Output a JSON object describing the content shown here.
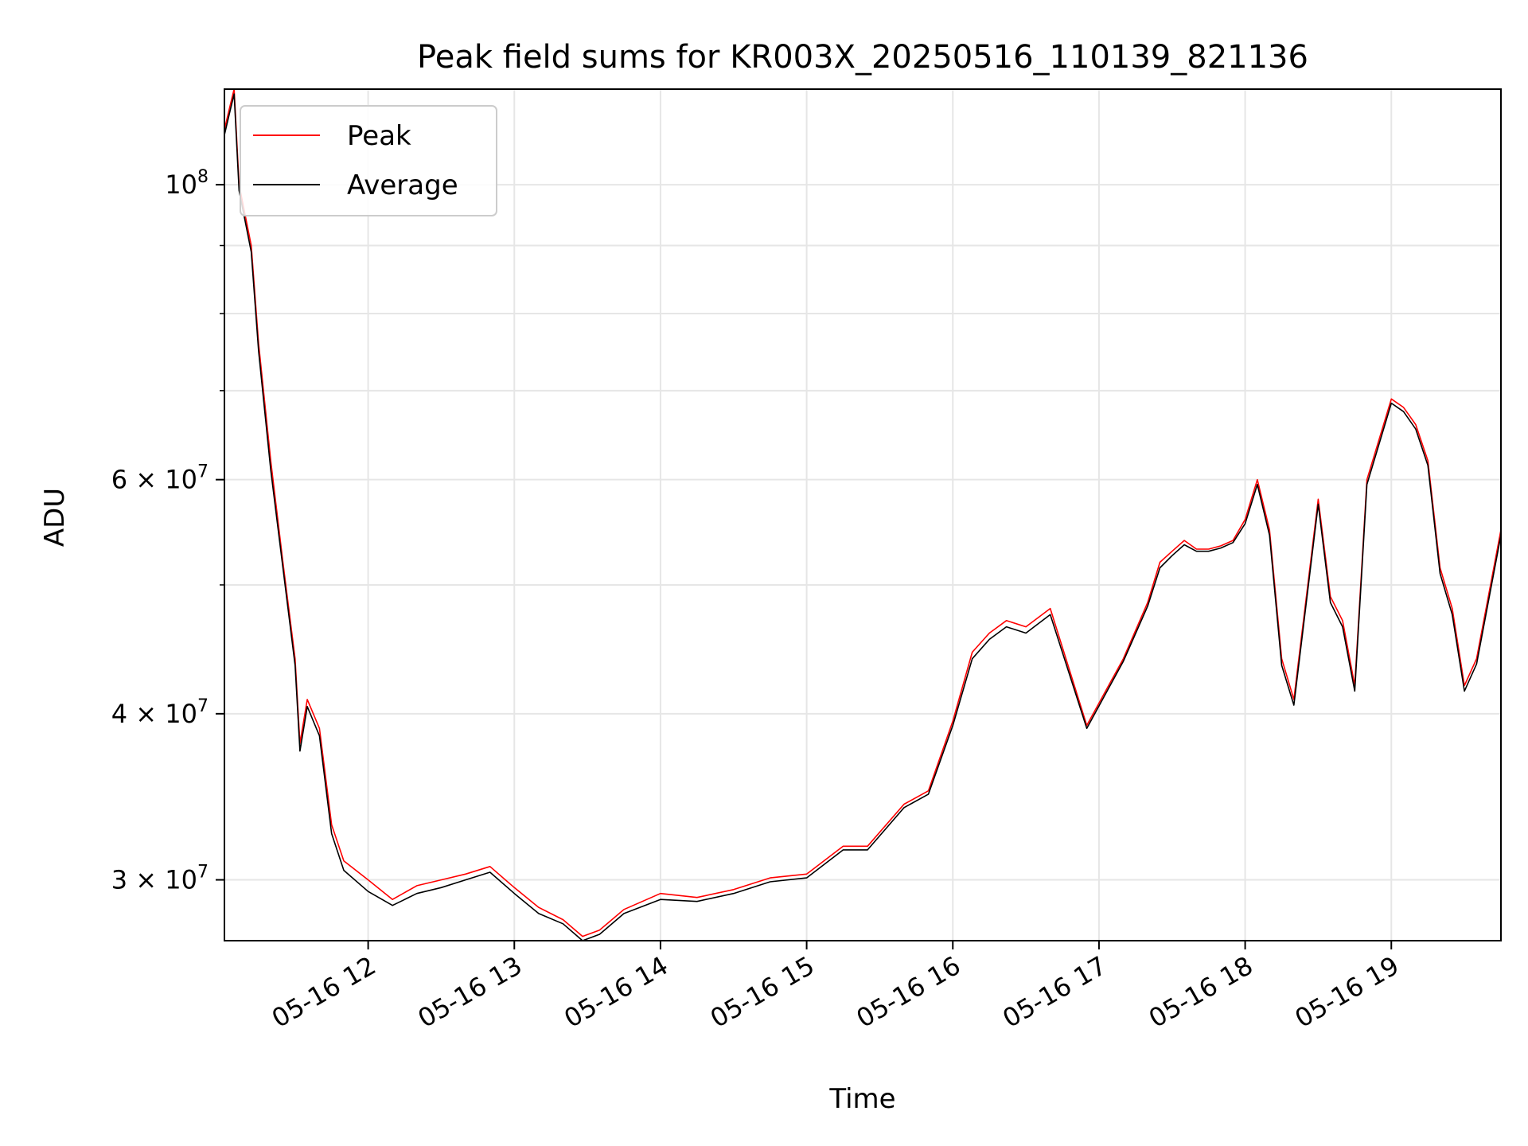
{
  "chart_data": {
    "type": "line",
    "title": "Peak field sums for KR003X_20250516_110139_821136",
    "xlabel": "Time",
    "ylabel": "ADU",
    "y_scale": "log",
    "ylim": [
      27000000,
      118000000
    ],
    "xlim": [
      "05-16 11:01",
      "05-16 19:45"
    ],
    "grid": true,
    "legend_placement": "upper-left",
    "x_ticks": [
      "05-16 12",
      "05-16 13",
      "05-16 14",
      "05-16 15",
      "05-16 16",
      "05-16 17",
      "05-16 18",
      "05-16 19"
    ],
    "y_ticks": [
      {
        "value": 30000000,
        "label": "3 × 10^7",
        "mant": "3",
        "exp": "7"
      },
      {
        "value": 40000000,
        "label": "4 × 10^7",
        "mant": "4",
        "exp": "7"
      },
      {
        "value": 60000000,
        "label": "6 × 10^7",
        "mant": "6",
        "exp": "7"
      },
      {
        "value": 100000000,
        "label": "10^8",
        "mant": "",
        "exp": "8"
      }
    ],
    "series": [
      {
        "name": "Peak",
        "color": "#ff0000",
        "x": [
          "05-16 11:01",
          "05-16 11:03",
          "05-16 11:05",
          "05-16 11:07",
          "05-16 11:12",
          "05-16 11:15",
          "05-16 11:20",
          "05-16 11:25",
          "05-16 11:30",
          "05-16 11:32",
          "05-16 11:35",
          "05-16 11:40",
          "05-16 11:45",
          "05-16 11:50",
          "05-16 12:00",
          "05-16 12:10",
          "05-16 12:20",
          "05-16 12:30",
          "05-16 12:40",
          "05-16 12:50",
          "05-16 13:00",
          "05-16 13:10",
          "05-16 13:20",
          "05-16 13:28",
          "05-16 13:35",
          "05-16 13:45",
          "05-16 14:00",
          "05-16 14:15",
          "05-16 14:30",
          "05-16 14:45",
          "05-16 15:00",
          "05-16 15:15",
          "05-16 15:25",
          "05-16 15:40",
          "05-16 15:50",
          "05-16 16:00",
          "05-16 16:08",
          "05-16 16:15",
          "05-16 16:22",
          "05-16 16:30",
          "05-16 16:40",
          "05-16 16:55",
          "05-16 17:10",
          "05-16 17:20",
          "05-16 17:25",
          "05-16 17:30",
          "05-16 17:35",
          "05-16 17:40",
          "05-16 17:45",
          "05-16 17:50",
          "05-16 17:55",
          "05-16 18:00",
          "05-16 18:05",
          "05-16 18:10",
          "05-16 18:15",
          "05-16 18:20",
          "05-16 18:30",
          "05-16 18:35",
          "05-16 18:40",
          "05-16 18:45",
          "05-16 18:50",
          "05-16 19:00",
          "05-16 19:05",
          "05-16 19:10",
          "05-16 19:15",
          "05-16 19:20",
          "05-16 19:25",
          "05-16 19:30",
          "05-16 19:35",
          "05-16 19:45"
        ],
        "y": [
          110000000,
          114000000,
          118000000,
          100000000,
          90000000,
          76000000,
          62000000,
          52000000,
          44000000,
          38000000,
          41000000,
          39000000,
          33000000,
          31000000,
          30000000,
          29000000,
          29700000,
          30000000,
          30300000,
          30700000,
          29600000,
          28600000,
          28000000,
          27200000,
          27500000,
          28500000,
          29300000,
          29100000,
          29500000,
          30100000,
          30300000,
          31800000,
          31800000,
          34200000,
          35000000,
          39500000,
          44500000,
          46000000,
          47000000,
          46500000,
          48000000,
          39200000,
          44000000,
          48500000,
          52000000,
          53000000,
          54000000,
          53200000,
          53200000,
          53500000,
          54000000,
          56000000,
          60000000,
          55000000,
          44000000,
          41000000,
          58000000,
          49000000,
          47000000,
          42000000,
          60000000,
          69000000,
          68000000,
          66000000,
          62000000,
          51500000,
          48000000,
          42000000,
          44000000,
          55000000
        ]
      },
      {
        "name": "Average",
        "color": "#000000",
        "x": [
          "05-16 11:01",
          "05-16 11:03",
          "05-16 11:05",
          "05-16 11:07",
          "05-16 11:12",
          "05-16 11:15",
          "05-16 11:20",
          "05-16 11:25",
          "05-16 11:30",
          "05-16 11:32",
          "05-16 11:35",
          "05-16 11:40",
          "05-16 11:45",
          "05-16 11:50",
          "05-16 12:00",
          "05-16 12:10",
          "05-16 12:20",
          "05-16 12:30",
          "05-16 12:40",
          "05-16 12:50",
          "05-16 13:00",
          "05-16 13:10",
          "05-16 13:20",
          "05-16 13:28",
          "05-16 13:35",
          "05-16 13:45",
          "05-16 14:00",
          "05-16 14:15",
          "05-16 14:30",
          "05-16 14:45",
          "05-16 15:00",
          "05-16 15:15",
          "05-16 15:25",
          "05-16 15:40",
          "05-16 15:50",
          "05-16 16:00",
          "05-16 16:08",
          "05-16 16:15",
          "05-16 16:22",
          "05-16 16:30",
          "05-16 16:40",
          "05-16 16:55",
          "05-16 17:10",
          "05-16 17:20",
          "05-16 17:25",
          "05-16 17:30",
          "05-16 17:35",
          "05-16 17:40",
          "05-16 17:45",
          "05-16 17:50",
          "05-16 17:55",
          "05-16 18:00",
          "05-16 18:05",
          "05-16 18:10",
          "05-16 18:15",
          "05-16 18:20",
          "05-16 18:30",
          "05-16 18:35",
          "05-16 18:40",
          "05-16 18:45",
          "05-16 18:50",
          "05-16 19:00",
          "05-16 19:05",
          "05-16 19:10",
          "05-16 19:15",
          "05-16 19:20",
          "05-16 19:25",
          "05-16 19:30",
          "05-16 19:35",
          "05-16 19:45"
        ],
        "y": [
          109000000,
          113000000,
          117000000,
          99000000,
          89000000,
          75000000,
          61000000,
          51500000,
          43500000,
          37500000,
          40500000,
          38500000,
          32500000,
          30500000,
          29400000,
          28700000,
          29300000,
          29600000,
          30000000,
          30400000,
          29300000,
          28300000,
          27800000,
          27000000,
          27300000,
          28300000,
          29000000,
          28900000,
          29300000,
          29900000,
          30100000,
          31600000,
          31600000,
          34000000,
          34800000,
          39200000,
          44000000,
          45500000,
          46500000,
          46000000,
          47500000,
          39000000,
          43800000,
          48200000,
          51500000,
          52600000,
          53600000,
          53000000,
          53000000,
          53300000,
          53800000,
          55600000,
          59500000,
          54500000,
          43500000,
          40600000,
          57500000,
          48500000,
          46500000,
          41600000,
          59500000,
          68500000,
          67500000,
          65500000,
          61500000,
          51000000,
          47500000,
          41600000,
          43600000,
          54500000
        ]
      }
    ]
  }
}
